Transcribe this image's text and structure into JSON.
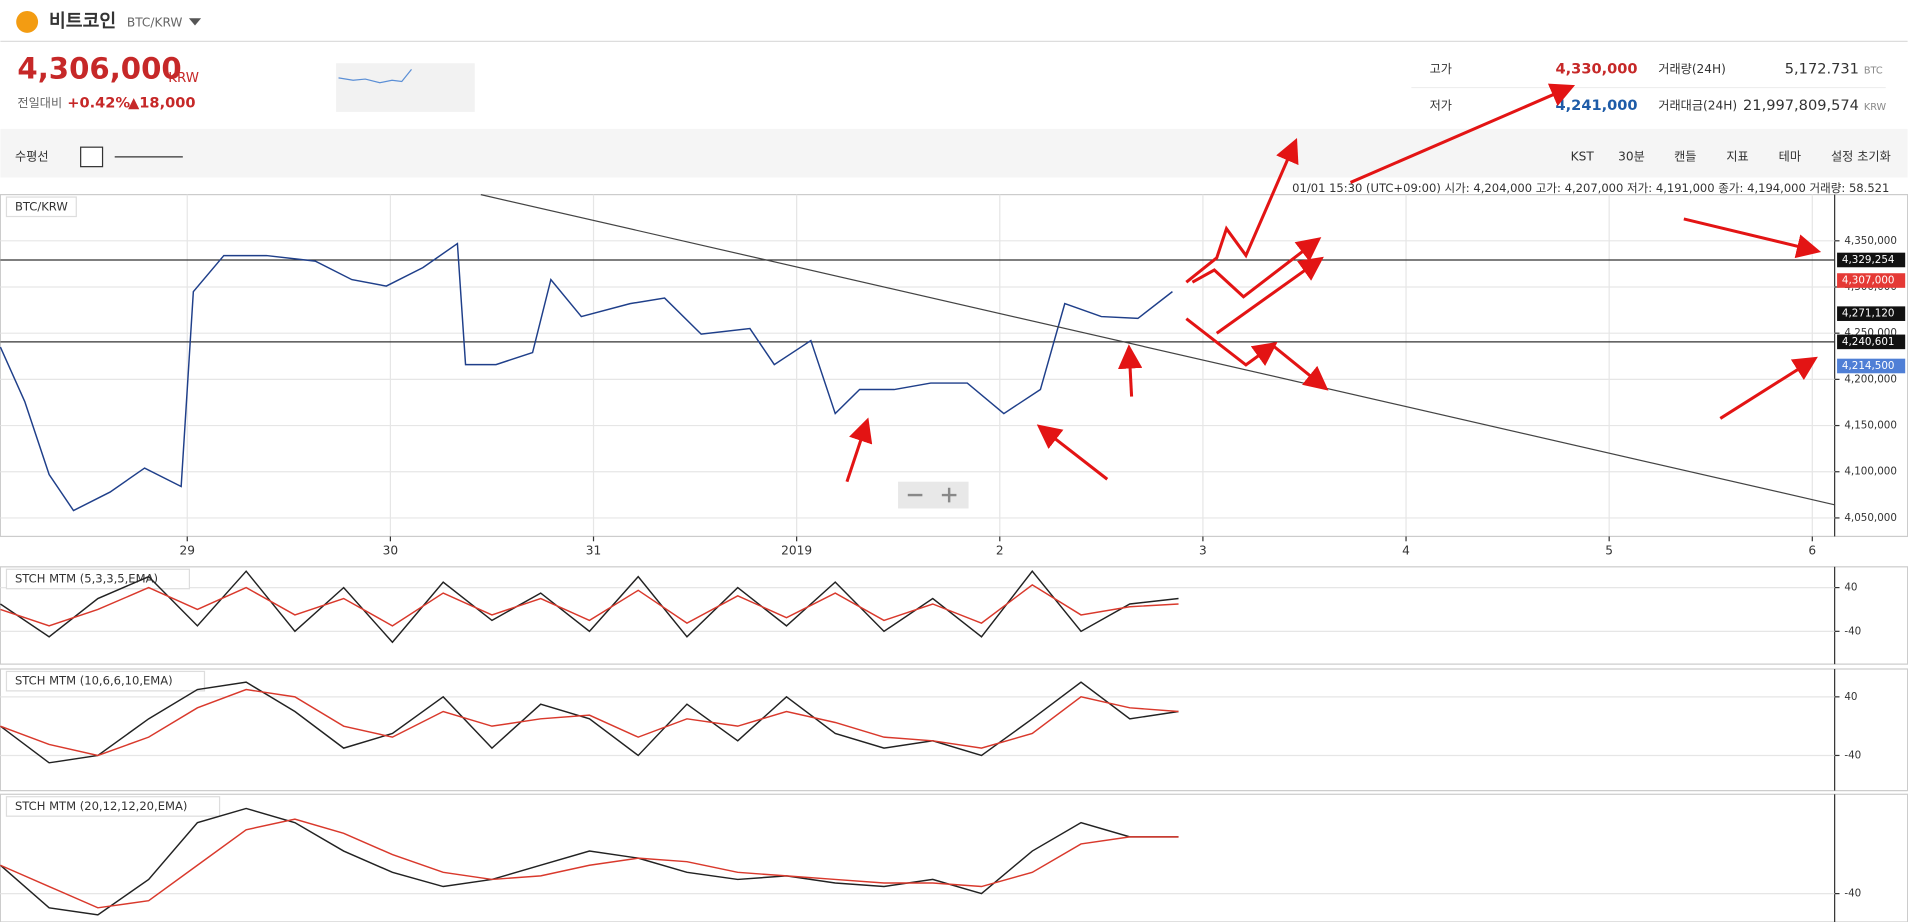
{
  "header": {
    "coin": "비트코인",
    "pair": "BTC/KRW"
  },
  "ticker": {
    "price": "4,306,000",
    "currency": "KRW",
    "change_label": "전일대비",
    "change_pct": "+0.42%",
    "change_abs": "▲18,000"
  },
  "stats": {
    "high_label": "고가",
    "high": "4,330,000",
    "low_label": "저가",
    "low": "4,241,000",
    "volume_label": "거래량(24H)",
    "volume": "5,172.731",
    "volume_unit": "BTC",
    "amount_label": "거래대금(24H)",
    "amount": "21,997,809,574",
    "amount_unit": "KRW"
  },
  "toolbar": {
    "left": [
      "수평선"
    ],
    "right": [
      "KST",
      "30분",
      "캔들",
      "지표",
      "테마",
      "설정 초기화"
    ]
  },
  "info": "01/01 15:30 (UTC+09:00) 시가: 4,204,000 고가: 4,207,000 저가: 4,191,000 종가: 4,194,000 거래량: 58.521",
  "chart_data": [
    {
      "type": "line",
      "title": "BTC/KRW",
      "xlim": [
        28.08,
        37.11
      ],
      "xticks": [
        {
          "value": 29,
          "label": "29"
        },
        {
          "value": 30,
          "label": "30"
        },
        {
          "value": 31,
          "label": "31"
        },
        {
          "value": 32,
          "label": "2019"
        },
        {
          "value": 33,
          "label": "2"
        },
        {
          "value": 34,
          "label": "3"
        },
        {
          "value": 35,
          "label": "4"
        },
        {
          "value": 36,
          "label": "5"
        },
        {
          "value": 37,
          "label": "6"
        }
      ],
      "ylim": [
        4030000,
        4400000
      ],
      "yticks": [
        {
          "value": 4050000,
          "label": "4,050,000"
        },
        {
          "value": 4100000,
          "label": "4,100,000"
        },
        {
          "value": 4150000,
          "label": "4,150,000"
        },
        {
          "value": 4200000,
          "label": "4,200,000"
        },
        {
          "value": 4250000,
          "label": "4,250,000"
        },
        {
          "value": 4300000,
          "label": "4,300,000"
        },
        {
          "value": 4350000,
          "label": "4,350,000"
        }
      ],
      "levels": [
        {
          "value": 4329254,
          "label": "4,329,254"
        },
        {
          "value": 4240601,
          "label": "4,240,601"
        }
      ],
      "price_tags": [
        {
          "value": 4307000,
          "label": "4,307,000",
          "color": "#e53935"
        },
        {
          "value": 4271120,
          "label": "4,271,120",
          "color": "#111111"
        },
        {
          "value": 4214500,
          "label": "4,214,500",
          "color": "#4f7fd6"
        }
      ],
      "grid": true,
      "series": [
        {
          "name": "BTC/KRW",
          "color": "#1f3f8a",
          "x": [
            28.08,
            28.2,
            28.32,
            28.44,
            28.62,
            28.79,
            28.97,
            29.03,
            29.18,
            29.39,
            29.63,
            29.81,
            29.98,
            30.16,
            30.33,
            30.37,
            30.52,
            30.7,
            30.79,
            30.94,
            31.18,
            31.35,
            31.53,
            31.77,
            31.89,
            32.07,
            32.19,
            32.31,
            32.48,
            32.66,
            32.84,
            33.02,
            33.2,
            33.32,
            33.5,
            33.68,
            33.85
          ],
          "values": [
            4235000,
            4176000,
            4097000,
            4058000,
            4078000,
            4104000,
            4084000,
            4295000,
            4334000,
            4334000,
            4328000,
            4308000,
            4301000,
            4321000,
            4347000,
            4216000,
            4216000,
            4229000,
            4308000,
            4268000,
            4282000,
            4288000,
            4249000,
            4255000,
            4216000,
            4242000,
            4163000,
            4189000,
            4189000,
            4196000,
            4196000,
            4163000,
            4189000,
            4282000,
            4268000,
            4266000,
            4295000
          ]
        }
      ]
    },
    {
      "type": "line",
      "title": "STCH MTM (5,3,3,5,EMA)",
      "xlim": [
        28.08,
        37.11
      ],
      "ylim": [
        -100,
        78
      ],
      "yticks": [
        40,
        -40
      ],
      "series": [
        {
          "name": "MTM",
          "color": "#222222",
          "x": [
            28.08,
            28.32,
            28.56,
            28.81,
            29.05,
            29.29,
            29.53,
            29.77,
            30.01,
            30.26,
            30.5,
            30.74,
            30.98,
            31.22,
            31.46,
            31.71,
            31.95,
            32.19,
            32.43,
            32.67,
            32.91,
            33.16,
            33.4,
            33.64,
            33.88
          ],
          "values": [
            10,
            -50,
            20,
            60,
            -30,
            70,
            -40,
            40,
            -60,
            50,
            -20,
            30,
            -40,
            60,
            -50,
            40,
            -30,
            50,
            -40,
            20,
            -50,
            70,
            -40,
            10,
            20
          ]
        },
        {
          "name": "Signal",
          "color": "#d9392c",
          "x": [
            28.08,
            28.32,
            28.56,
            28.81,
            29.05,
            29.29,
            29.53,
            29.77,
            30.01,
            30.26,
            30.5,
            30.74,
            30.98,
            31.22,
            31.46,
            31.71,
            31.95,
            32.19,
            32.43,
            32.67,
            32.91,
            33.16,
            33.4,
            33.64,
            33.88
          ],
          "values": [
            0,
            -30,
            0,
            40,
            0,
            40,
            -10,
            20,
            -30,
            30,
            -10,
            20,
            -20,
            35,
            -25,
            25,
            -15,
            30,
            -20,
            10,
            -25,
            45,
            -10,
            5,
            10
          ]
        }
      ]
    },
    {
      "type": "line",
      "title": "STCH MTM (10,6,6,10,EMA)",
      "xlim": [
        28.08,
        37.11
      ],
      "ylim": [
        -88,
        78
      ],
      "yticks": [
        40,
        -40
      ],
      "series": [
        {
          "name": "MTM",
          "color": "#222222",
          "x": [
            28.08,
            28.32,
            28.56,
            28.81,
            29.05,
            29.29,
            29.53,
            29.77,
            30.01,
            30.26,
            30.5,
            30.74,
            30.98,
            31.22,
            31.46,
            31.71,
            31.95,
            32.19,
            32.43,
            32.67,
            32.91,
            33.16,
            33.4,
            33.64,
            33.88
          ],
          "values": [
            0,
            -50,
            -40,
            10,
            50,
            60,
            20,
            -30,
            -10,
            40,
            -30,
            30,
            10,
            -40,
            30,
            -20,
            40,
            -10,
            -30,
            -20,
            -40,
            10,
            60,
            10,
            20
          ]
        },
        {
          "name": "Signal",
          "color": "#d9392c",
          "x": [
            28.08,
            28.32,
            28.56,
            28.81,
            29.05,
            29.29,
            29.53,
            29.77,
            30.01,
            30.26,
            30.5,
            30.74,
            30.98,
            31.22,
            31.46,
            31.71,
            31.95,
            32.19,
            32.43,
            32.67,
            32.91,
            33.16,
            33.4,
            33.64,
            33.88
          ],
          "values": [
            0,
            -25,
            -40,
            -15,
            25,
            50,
            40,
            0,
            -15,
            20,
            0,
            10,
            15,
            -15,
            10,
            0,
            20,
            5,
            -15,
            -20,
            -30,
            -10,
            40,
            25,
            20
          ]
        }
      ]
    },
    {
      "type": "line",
      "title": "STCH MTM (20,12,12,20,EMA)",
      "xlim": [
        28.08,
        37.11
      ],
      "ylim": [
        -80,
        100
      ],
      "yticks": [
        -40
      ],
      "series": [
        {
          "name": "MTM",
          "color": "#222222",
          "x": [
            28.08,
            28.32,
            28.56,
            28.81,
            29.05,
            29.29,
            29.53,
            29.77,
            30.01,
            30.26,
            30.5,
            30.74,
            30.98,
            31.22,
            31.46,
            31.71,
            31.95,
            32.19,
            32.43,
            32.67,
            32.91,
            33.16,
            33.4,
            33.64,
            33.88
          ],
          "values": [
            0,
            -60,
            -70,
            -20,
            60,
            80,
            60,
            20,
            -10,
            -30,
            -20,
            0,
            20,
            10,
            -10,
            -20,
            -15,
            -25,
            -30,
            -20,
            -40,
            20,
            60,
            40,
            40
          ]
        },
        {
          "name": "Signal",
          "color": "#d9392c",
          "x": [
            28.08,
            28.32,
            28.56,
            28.81,
            29.05,
            29.29,
            29.53,
            29.77,
            30.01,
            30.26,
            30.5,
            30.74,
            30.98,
            31.22,
            31.46,
            31.71,
            31.95,
            32.19,
            32.43,
            32.67,
            32.91,
            33.16,
            33.4,
            33.64,
            33.88
          ],
          "values": [
            0,
            -30,
            -60,
            -50,
            0,
            50,
            65,
            45,
            15,
            -10,
            -20,
            -15,
            0,
            10,
            5,
            -10,
            -15,
            -20,
            -25,
            -25,
            -30,
            -10,
            30,
            40,
            40
          ]
        }
      ]
    }
  ]
}
